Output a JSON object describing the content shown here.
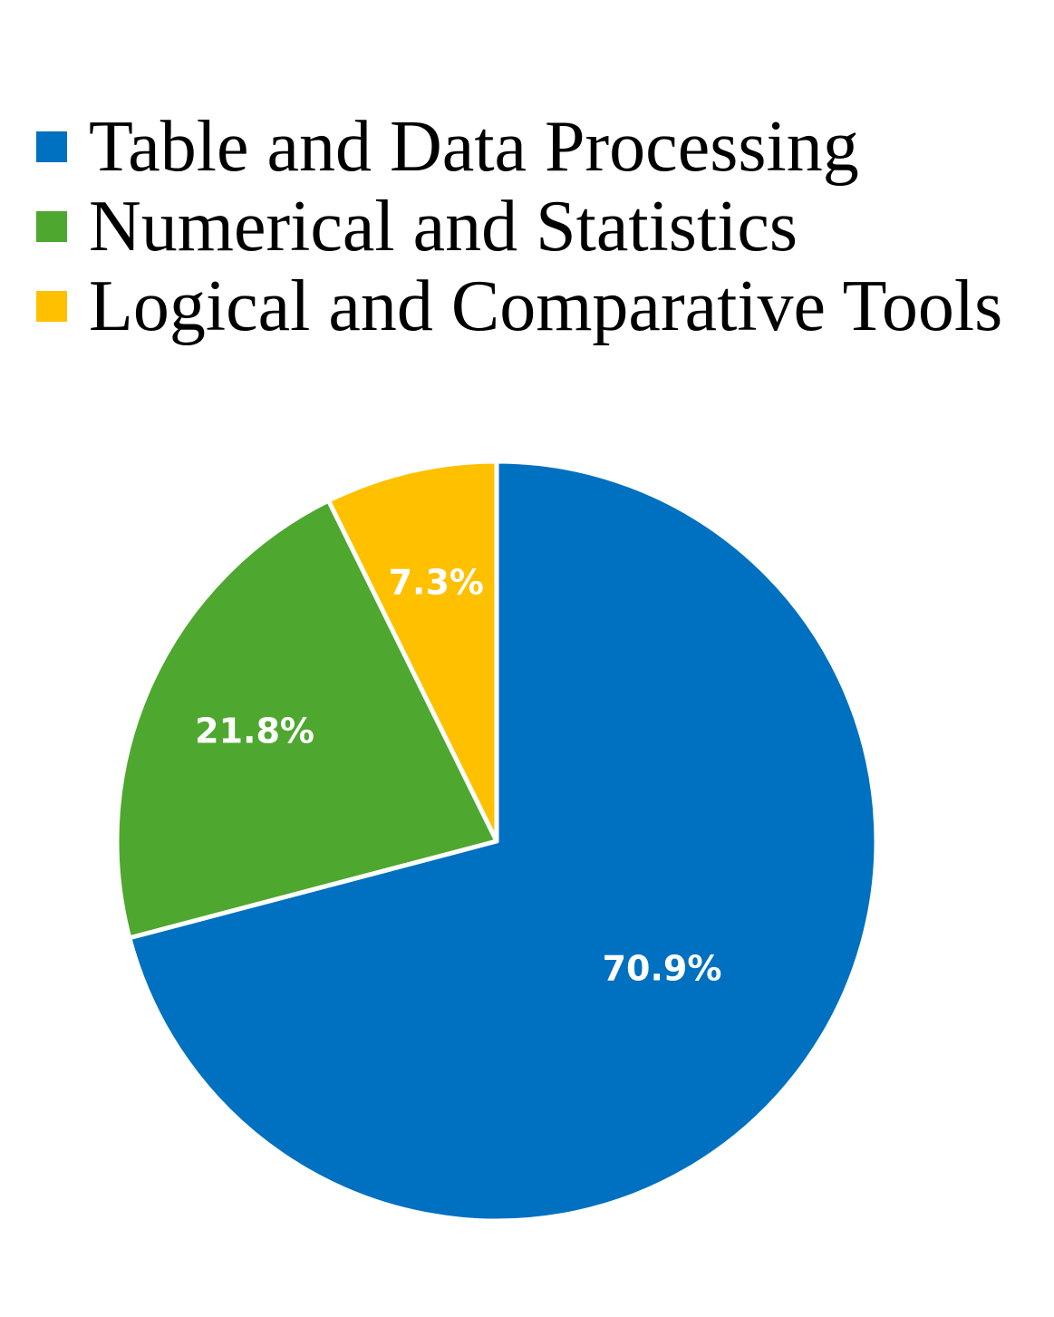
{
  "chart_data": {
    "type": "pie",
    "categories": [
      "Table and Data Processing",
      "Numerical and Statistics",
      "Logical and Comparative Tools"
    ],
    "values": [
      70.9,
      21.8,
      7.3
    ],
    "data_labels": [
      "70.9%",
      "21.8%",
      "7.3%"
    ],
    "colors": [
      "#0070C0",
      "#4EA72E",
      "#FFC000"
    ],
    "start": "12 o'clock",
    "direction": "clockwise",
    "legend_position": "top"
  }
}
